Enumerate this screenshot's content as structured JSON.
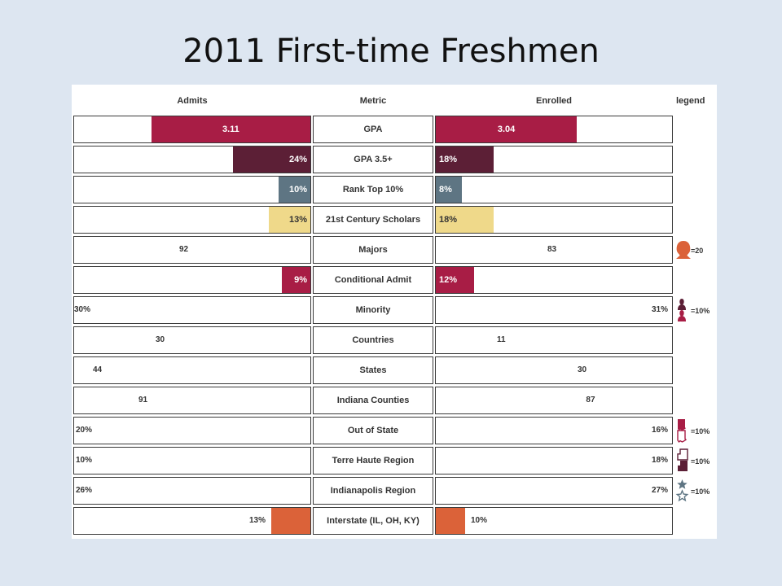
{
  "title": "2011 First-time Freshmen",
  "colors": {
    "crimson": "#a81d45",
    "plum": "#5c1f36",
    "slate": "#5e7583",
    "sand": "#efd98a",
    "orange": "#db6239",
    "grey_border": "#3a3a3a"
  },
  "chart_data": {
    "type": "table",
    "headers": {
      "left": "Admits",
      "metric": "Metric",
      "right": "Enrolled",
      "legend": "legend"
    },
    "rows": [
      {
        "metric": "GPA",
        "admits": 3.11,
        "enrolled": 3.04,
        "admits_label": "3.11",
        "enrolled_label": "3.04",
        "visual": "bar",
        "color": "#a81d45",
        "scale_max": 4.0
      },
      {
        "metric": "GPA 3.5+",
        "admits": 24,
        "enrolled": 18,
        "admits_label": "24%",
        "enrolled_label": "18%",
        "visual": "bar",
        "color": "#5c1f36",
        "scale_max": 100
      },
      {
        "metric": "Rank Top 10%",
        "admits": 10,
        "enrolled": 8,
        "admits_label": "10%",
        "enrolled_label": "8%",
        "visual": "bar",
        "color": "#5e7583",
        "scale_max": 100
      },
      {
        "metric": "21st Century Scholars",
        "admits": 13,
        "enrolled": 18,
        "admits_label": "13%",
        "enrolled_label": "18%",
        "visual": "bar",
        "color": "#efd98a",
        "scale_max": 100
      },
      {
        "metric": "Majors",
        "admits": 92,
        "enrolled": 83,
        "admits_label": "92",
        "enrolled_label": "83",
        "visual": "heads",
        "icon": "head-icon",
        "color": "#db6239",
        "unit": 20
      },
      {
        "metric": "Conditional Admit",
        "admits": 9,
        "enrolled": 12,
        "admits_label": "9%",
        "enrolled_label": "12%",
        "visual": "bar",
        "color": "#a81d45",
        "scale_max": 100
      },
      {
        "metric": "Minority",
        "admits": 30,
        "enrolled": 31,
        "admits_label": "30%",
        "enrolled_label": "31%",
        "visual": "people",
        "icon": "person-icon",
        "color": "#a81d45",
        "color_other": "#5c1f36",
        "unit": 10
      },
      {
        "metric": "Countries",
        "admits": 30,
        "enrolled": 11,
        "admits_label": "30",
        "enrolled_label": "11",
        "visual": "dots",
        "icon": "dot-icon",
        "color": "#5e7583"
      },
      {
        "metric": "States",
        "admits": 44,
        "enrolled": 30,
        "admits_label": "44",
        "enrolled_label": "30",
        "visual": "dots",
        "icon": "dot-icon",
        "color": "#efd98a"
      },
      {
        "metric": "Indiana Counties",
        "admits": 91,
        "enrolled": 87,
        "admits_label": "91",
        "enrolled_label": "87",
        "visual": "squares",
        "icon": "square-icon",
        "color": "#db6239"
      },
      {
        "metric": "Out of State",
        "admits": 20,
        "enrolled": 16,
        "admits_label": "20%",
        "enrolled_label": "16%",
        "visual": "state",
        "icon": "indiana-state-icon",
        "color": "#a81d45",
        "unit": 10
      },
      {
        "metric": "Terre Haute Region",
        "admits": 10,
        "enrolled": 18,
        "admits_label": "10%",
        "enrolled_label": "18%",
        "visual": "county",
        "icon": "county-icon",
        "color": "#5c1f36",
        "unit": 10
      },
      {
        "metric": "Indianapolis Region",
        "admits": 26,
        "enrolled": 27,
        "admits_label": "26%",
        "enrolled_label": "27%",
        "visual": "stars",
        "icon": "star-icon",
        "color": "#5e7583",
        "unit": 10
      },
      {
        "metric": "Interstate (IL, OH, KY)",
        "admits": 13,
        "enrolled": 10,
        "admits_label": "13%",
        "enrolled_label": "10%",
        "visual": "block",
        "color": "#db6239",
        "scale_max": 100
      }
    ],
    "legend": [
      {
        "icon": "head-icon",
        "label": "=20"
      },
      {
        "icon": "person-icon",
        "label": "=10%"
      },
      {
        "icon": "indiana-state-icon",
        "label": "=10%"
      },
      {
        "icon": "county-icon",
        "label": "=10%"
      },
      {
        "icon": "star-icon",
        "label": "=10%"
      }
    ]
  }
}
